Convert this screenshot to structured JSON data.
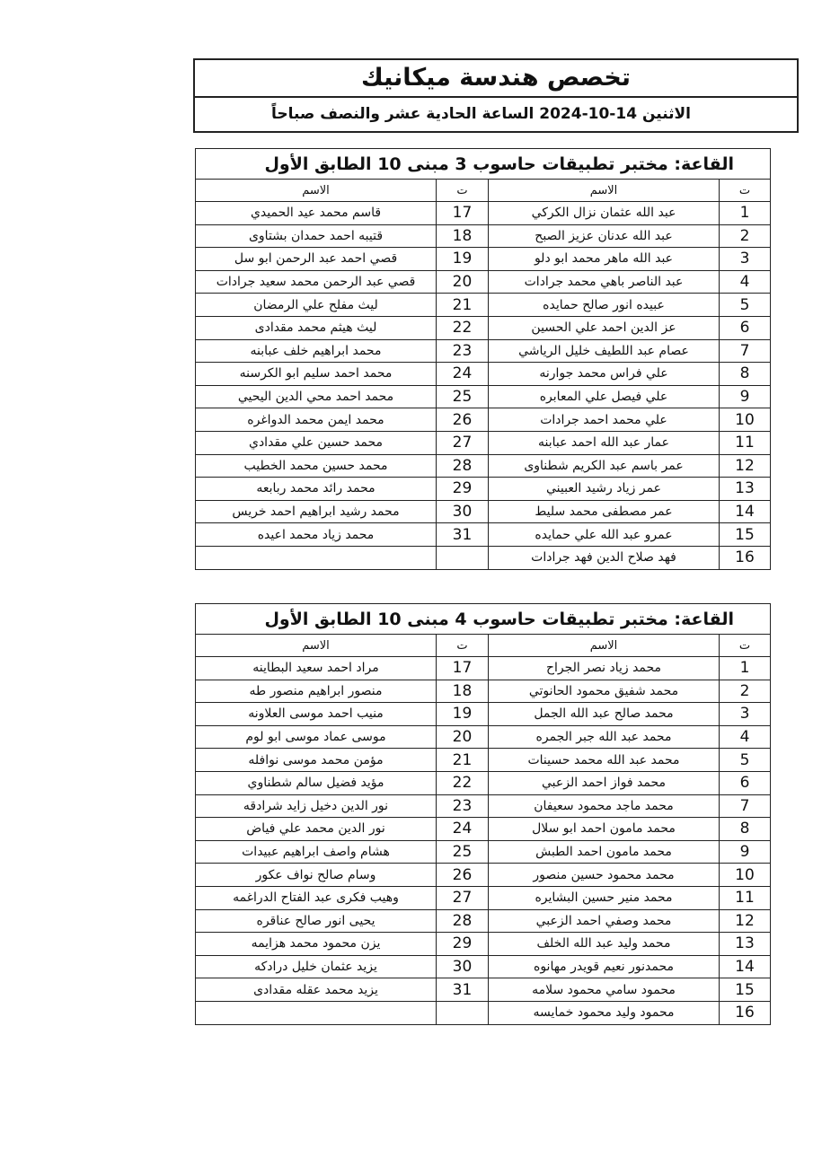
{
  "header": {
    "title": "تخصص هندسة ميكانيك",
    "subtitle": "الاثنين 14-10-2024  الساعة الحادية عشر والنصف صباحاً"
  },
  "tables": [
    {
      "title": "القاعة: مختبر تطبيقات حاسوب 3 مبنى 10 الطابق الأول",
      "col_num": "ت",
      "col_name": "الاسم",
      "right": [
        [
          "1",
          "عبد الله عثمان نزال الكركي"
        ],
        [
          "2",
          "عبد الله عدنان عزيز الصبح"
        ],
        [
          "3",
          "عبد الله ماهر محمد ابو دلو"
        ],
        [
          "4",
          "عبد الناصر باهي محمد جرادات"
        ],
        [
          "5",
          "عبيده انور صالح حمايده"
        ],
        [
          "6",
          "عز الدين احمد علي الحسين"
        ],
        [
          "7",
          "عصام عبد اللطيف خليل الرياشي"
        ],
        [
          "8",
          "علي فراس محمد جوارنه"
        ],
        [
          "9",
          "علي فيصل علي المعابره"
        ],
        [
          "10",
          "علي محمد احمد جرادات"
        ],
        [
          "11",
          "عمار عبد الله احمد عبابنه"
        ],
        [
          "12",
          "عمر باسم عبد الكريم شطناوى"
        ],
        [
          "13",
          "عمر زياد رشيد العبيني"
        ],
        [
          "14",
          "عمر مصطفى محمد سليط"
        ],
        [
          "15",
          "عمرو عبد الله علي حمايده"
        ],
        [
          "16",
          "فهد صلاح الدين فهد جرادات"
        ]
      ],
      "left": [
        [
          "17",
          "قاسم محمد عيد الحميدي"
        ],
        [
          "18",
          "قتيبه احمد حمدان بشتاوى"
        ],
        [
          "19",
          "قصي احمد عبد الرحمن ابو سل"
        ],
        [
          "20",
          "قصي عبد الرحمن محمد سعيد جرادات"
        ],
        [
          "21",
          "ليث مفلح علي الرمضان"
        ],
        [
          "22",
          "ليث هيثم محمد مقدادى"
        ],
        [
          "23",
          "محمد ابراهيم خلف عبابنه"
        ],
        [
          "24",
          "محمد احمد سليم ابو الكرسنه"
        ],
        [
          "25",
          "محمد احمد محي الدين اليحيي"
        ],
        [
          "26",
          "محمد ايمن محمد الدواغره"
        ],
        [
          "27",
          "محمد حسين علي مقدادي"
        ],
        [
          "28",
          "محمد حسين محمد الخطيب"
        ],
        [
          "29",
          "محمد رائد محمد ربابعه"
        ],
        [
          "30",
          "محمد رشيد ابراهيم احمد خريس"
        ],
        [
          "31",
          "محمد زياد محمد اعيده"
        ],
        [
          "",
          ""
        ]
      ]
    },
    {
      "title": "القاعة: مختبر تطبيقات حاسوب 4 مبنى 10 الطابق الأول",
      "col_num": "ت",
      "col_name": "الاسم",
      "right": [
        [
          "1",
          "محمد زياد نصر الجراح"
        ],
        [
          "2",
          "محمد شفيق محمود الحانوتي"
        ],
        [
          "3",
          "محمد صالح عبد الله الجمل"
        ],
        [
          "4",
          "محمد عبد الله جبر الجمره"
        ],
        [
          "5",
          "محمد عبد الله محمد حسينات"
        ],
        [
          "6",
          "محمد فواز احمد الزعبي"
        ],
        [
          "7",
          "محمد ماجد محمود سعيفان"
        ],
        [
          "8",
          "محمد مامون احمد ابو سلال"
        ],
        [
          "9",
          "محمد مامون احمد الطبش"
        ],
        [
          "10",
          "محمد محمود حسين منصور"
        ],
        [
          "11",
          "محمد منير حسين البشايره"
        ],
        [
          "12",
          "محمد وصفي احمد الزعبي"
        ],
        [
          "13",
          "محمد وليد عبد الله الخلف"
        ],
        [
          "14",
          "محمدنور نعيم قويدر مهانوه"
        ],
        [
          "15",
          "محمود سامي محمود سلامه"
        ],
        [
          "16",
          "محمود وليد محمود خمايسه"
        ]
      ],
      "left": [
        [
          "17",
          "مراد احمد سعيد البطاينه"
        ],
        [
          "18",
          "منصور ابراهيم منصور طه"
        ],
        [
          "19",
          "منيب احمد موسى العلاونه"
        ],
        [
          "20",
          "موسى عماد موسى ابو لوم"
        ],
        [
          "21",
          "مؤمن محمد موسى نوافله"
        ],
        [
          "22",
          "مؤيد فضيل سالم شطناوي"
        ],
        [
          "23",
          "نور الدين دخيل زايد شرادقه"
        ],
        [
          "24",
          "نور الدين محمد علي فياض"
        ],
        [
          "25",
          "هشام واصف ابراهيم عبيدات"
        ],
        [
          "26",
          "وسام صالح نواف عكور"
        ],
        [
          "27",
          "وهيب فكرى عبد الفتاح الدراغمه"
        ],
        [
          "28",
          "يحيى انور صالح عناقره"
        ],
        [
          "29",
          "يزن محمود محمد هزايمه"
        ],
        [
          "30",
          "يزيد عثمان خليل درادكه"
        ],
        [
          "31",
          "يزيد محمد عقله مقدادى"
        ],
        [
          "",
          ""
        ]
      ]
    }
  ]
}
